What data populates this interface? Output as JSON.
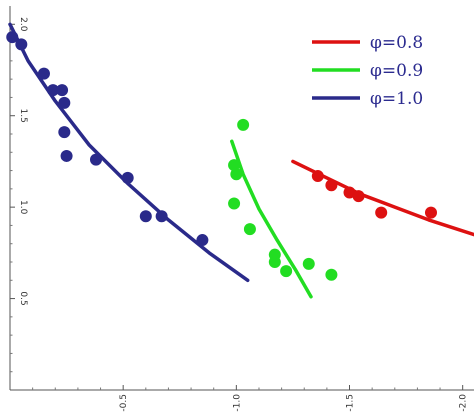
{
  "chart_data": {
    "type": "scatter",
    "title": "",
    "xlabel": "",
    "ylabel": "",
    "xlim": [
      0,
      -2.05
    ],
    "ylim": [
      0,
      2.1
    ],
    "x_axis_position": "bottom",
    "y_axis_position": "left",
    "tick_label_orientation": "rotated-90",
    "grid": false,
    "legend": {
      "position": "top-right"
    },
    "x_ticks": [
      {
        "value": -0.5,
        "label": "-0.5"
      },
      {
        "value": -1.0,
        "label": "-1.0"
      },
      {
        "value": -1.5,
        "label": "-1.5"
      },
      {
        "value": -2.0,
        "label": "-2.0"
      }
    ],
    "y_ticks": [
      {
        "value": 0.5,
        "label": "0.5"
      },
      {
        "value": 1.0,
        "label": "1.0"
      },
      {
        "value": 1.5,
        "label": "1.5"
      },
      {
        "value": 2.0,
        "label": "2.0"
      }
    ],
    "series": [
      {
        "name": "φ=0.8",
        "color": "#dd1111",
        "points": [
          {
            "x": -1.36,
            "y": 1.17
          },
          {
            "x": -1.42,
            "y": 1.12
          },
          {
            "x": -1.5,
            "y": 1.08
          },
          {
            "x": -1.54,
            "y": 1.06
          },
          {
            "x": -1.64,
            "y": 0.97
          },
          {
            "x": -1.86,
            "y": 0.97
          }
        ],
        "fit": [
          {
            "x": -1.25,
            "y": 1.25
          },
          {
            "x": -1.4,
            "y": 1.16
          },
          {
            "x": -1.55,
            "y": 1.07
          },
          {
            "x": -1.7,
            "y": 1.0
          },
          {
            "x": -1.85,
            "y": 0.93
          },
          {
            "x": -2.05,
            "y": 0.85
          }
        ]
      },
      {
        "name": "φ=0.9",
        "color": "#22dd22",
        "points": [
          {
            "x": -1.03,
            "y": 1.45
          },
          {
            "x": -0.99,
            "y": 1.23
          },
          {
            "x": -1.0,
            "y": 1.18
          },
          {
            "x": -0.99,
            "y": 1.02
          },
          {
            "x": -1.06,
            "y": 0.88
          },
          {
            "x": -1.17,
            "y": 0.74
          },
          {
            "x": -1.17,
            "y": 0.7
          },
          {
            "x": -1.22,
            "y": 0.65
          },
          {
            "x": -1.32,
            "y": 0.69
          },
          {
            "x": -1.42,
            "y": 0.63
          }
        ],
        "fit": [
          {
            "x": -0.98,
            "y": 1.36
          },
          {
            "x": -1.03,
            "y": 1.18
          },
          {
            "x": -1.1,
            "y": 0.99
          },
          {
            "x": -1.18,
            "y": 0.82
          },
          {
            "x": -1.26,
            "y": 0.66
          },
          {
            "x": -1.33,
            "y": 0.51
          }
        ]
      },
      {
        "name": "φ=1.0",
        "color": "#2a2a8a",
        "points": [
          {
            "x": -0.01,
            "y": 1.93
          },
          {
            "x": -0.05,
            "y": 1.89
          },
          {
            "x": -0.15,
            "y": 1.73
          },
          {
            "x": -0.19,
            "y": 1.64
          },
          {
            "x": -0.23,
            "y": 1.64
          },
          {
            "x": -0.24,
            "y": 1.57
          },
          {
            "x": -0.24,
            "y": 1.41
          },
          {
            "x": -0.25,
            "y": 1.28
          },
          {
            "x": -0.38,
            "y": 1.26
          },
          {
            "x": -0.52,
            "y": 1.16
          },
          {
            "x": -0.6,
            "y": 0.95
          },
          {
            "x": -0.67,
            "y": 0.95
          },
          {
            "x": -0.85,
            "y": 0.82
          }
        ],
        "fit": [
          {
            "x": 0.0,
            "y": 2.0
          },
          {
            "x": -0.08,
            "y": 1.8
          },
          {
            "x": -0.2,
            "y": 1.58
          },
          {
            "x": -0.35,
            "y": 1.34
          },
          {
            "x": -0.52,
            "y": 1.13
          },
          {
            "x": -0.7,
            "y": 0.93
          },
          {
            "x": -0.88,
            "y": 0.75
          },
          {
            "x": -1.05,
            "y": 0.6
          }
        ]
      }
    ]
  }
}
